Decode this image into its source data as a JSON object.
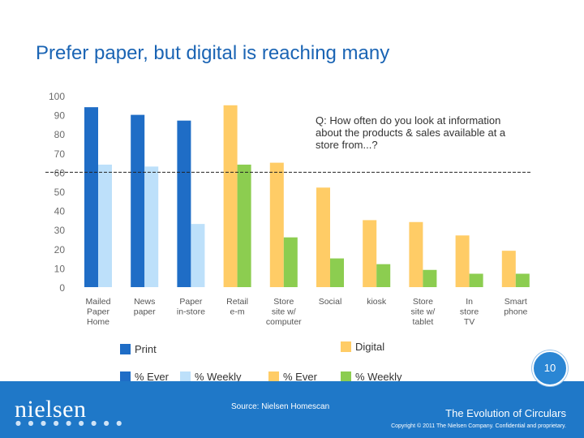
{
  "title": "Prefer paper, but digital is reaching many",
  "colors": {
    "print_ever": "#1f6dc6",
    "print_weekly": "#bde0fa",
    "digital_ever": "#ffcc66",
    "digital_weekly": "#8ccd50",
    "title": "#1a64b4",
    "footer": "#1f78c8"
  },
  "chart_data": {
    "type": "bar",
    "categories": [
      "Mailed Paper Home",
      "News paper",
      "Paper in-store",
      "Retail e-m",
      "Store site w/ computer",
      "Social",
      "kiosk",
      "Store site w/ tablet",
      "In store TV",
      "Smart phone"
    ],
    "category_lines": [
      [
        "Mailed",
        "Paper",
        "Home"
      ],
      [
        "News",
        "paper"
      ],
      [
        "Paper",
        "in-store"
      ],
      [
        "Retail",
        "e-m"
      ],
      [
        "Store",
        "site w/",
        "computer"
      ],
      [
        "Social"
      ],
      [
        "kiosk"
      ],
      [
        "Store",
        "site w/",
        "tablet"
      ],
      [
        "In",
        "store",
        "TV"
      ],
      [
        "Smart",
        "phone"
      ]
    ],
    "groups": [
      "print",
      "print",
      "print",
      "digital",
      "digital",
      "digital",
      "digital",
      "digital",
      "digital",
      "digital"
    ],
    "series": [
      {
        "name": "% Ever",
        "values": [
          94,
          90,
          87,
          95,
          65,
          52,
          35,
          34,
          27,
          19
        ]
      },
      {
        "name": "% Weekly",
        "values": [
          64,
          63,
          33,
          64,
          26,
          15,
          12,
          9,
          7,
          7
        ]
      }
    ],
    "ylim": [
      0,
      100
    ],
    "yticks": [
      0,
      10,
      20,
      30,
      40,
      50,
      60,
      70,
      80,
      90,
      100
    ],
    "reference_line": 60,
    "annotation": "Q: How often do you look at information about the products & sales available at a store from...?",
    "annotation_lines": [
      "Q: How often do you look at information",
      "about the products & sales available at a",
      "store from...?"
    ],
    "grid": false,
    "legend": {
      "groups": [
        "Print",
        "Digital"
      ],
      "series": [
        "% Ever",
        "% Weekly",
        "% Ever",
        "% Weekly"
      ]
    }
  },
  "footer": {
    "logo": "nielsen",
    "logo_dots": "● ● ● ● ● ● ● ● ●",
    "source": "Source:  Nielsen Homescan",
    "subtitle": "The Evolution of Circulars",
    "copyright": "Copyright © 2011 The Nielsen Company. Confidential and proprietary.",
    "page": "10"
  }
}
